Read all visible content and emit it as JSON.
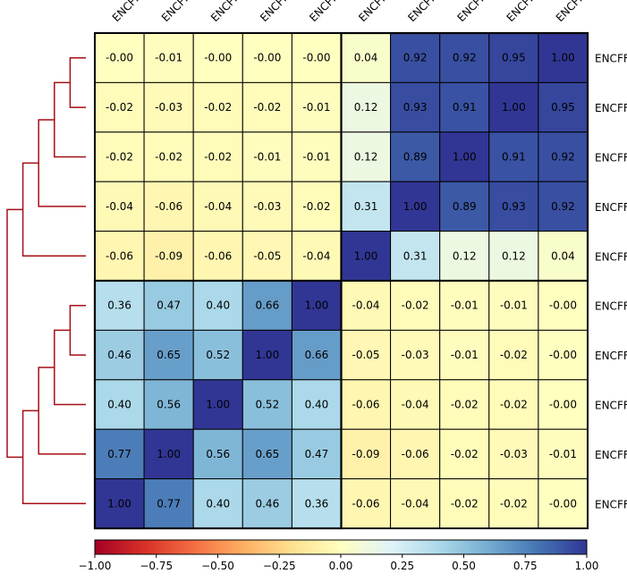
{
  "chart_data": {
    "type": "heatmap",
    "title": "",
    "row_labels": [
      "ENCFF",
      "ENCFF",
      "ENCFF",
      "ENCFF",
      "ENCFF",
      "ENCFF",
      "ENCFF",
      "ENCFF",
      "ENCFF",
      "ENCFF"
    ],
    "col_labels": [
      "ENCFF",
      "ENCFF",
      "ENCFF",
      "ENCFF",
      "ENCFF",
      "ENCFF",
      "ENCFF",
      "ENCFF",
      "ENCFF",
      "ENCFF"
    ],
    "matrix": [
      [
        -0.0,
        -0.01,
        -0.0,
        -0.0,
        -0.0,
        0.04,
        0.92,
        0.92,
        0.95,
        1.0
      ],
      [
        -0.02,
        -0.03,
        -0.02,
        -0.02,
        -0.01,
        0.12,
        0.93,
        0.91,
        1.0,
        0.95
      ],
      [
        -0.02,
        -0.02,
        -0.02,
        -0.01,
        -0.01,
        0.12,
        0.89,
        1.0,
        0.91,
        0.92
      ],
      [
        -0.04,
        -0.06,
        -0.04,
        -0.03,
        -0.02,
        0.31,
        1.0,
        0.89,
        0.93,
        0.92
      ],
      [
        -0.06,
        -0.09,
        -0.06,
        -0.05,
        -0.04,
        1.0,
        0.31,
        0.12,
        0.12,
        0.04
      ],
      [
        0.36,
        0.47,
        0.4,
        0.66,
        1.0,
        -0.04,
        -0.02,
        -0.01,
        -0.01,
        -0.0
      ],
      [
        0.46,
        0.65,
        0.52,
        1.0,
        0.66,
        -0.05,
        -0.03,
        -0.01,
        -0.02,
        -0.0
      ],
      [
        0.4,
        0.56,
        1.0,
        0.52,
        0.4,
        -0.06,
        -0.04,
        -0.02,
        -0.02,
        -0.0
      ],
      [
        0.77,
        1.0,
        0.56,
        0.65,
        0.47,
        -0.09,
        -0.06,
        -0.02,
        -0.03,
        -0.01
      ],
      [
        1.0,
        0.77,
        0.4,
        0.46,
        0.36,
        -0.06,
        -0.04,
        -0.02,
        -0.02,
        -0.0
      ]
    ],
    "matrix_labels": [
      [
        "-0.00",
        "-0.01",
        "-0.00",
        "-0.00",
        "-0.00",
        "0.04",
        "0.92",
        "0.92",
        "0.95",
        "1.00"
      ],
      [
        "-0.02",
        "-0.03",
        "-0.02",
        "-0.02",
        "-0.01",
        "0.12",
        "0.93",
        "0.91",
        "1.00",
        "0.95"
      ],
      [
        "-0.02",
        "-0.02",
        "-0.02",
        "-0.01",
        "-0.01",
        "0.12",
        "0.89",
        "1.00",
        "0.91",
        "0.92"
      ],
      [
        "-0.04",
        "-0.06",
        "-0.04",
        "-0.03",
        "-0.02",
        "0.31",
        "1.00",
        "0.89",
        "0.93",
        "0.92"
      ],
      [
        "-0.06",
        "-0.09",
        "-0.06",
        "-0.05",
        "-0.04",
        "1.00",
        "0.31",
        "0.12",
        "0.12",
        "0.04"
      ],
      [
        "0.36",
        "0.47",
        "0.40",
        "0.66",
        "1.00",
        "-0.04",
        "-0.02",
        "-0.01",
        "-0.01",
        "-0.00"
      ],
      [
        "0.46",
        "0.65",
        "0.52",
        "1.00",
        "0.66",
        "-0.05",
        "-0.03",
        "-0.01",
        "-0.02",
        "-0.00"
      ],
      [
        "0.40",
        "0.56",
        "1.00",
        "0.52",
        "0.40",
        "-0.06",
        "-0.04",
        "-0.02",
        "-0.02",
        "-0.00"
      ],
      [
        "0.77",
        "1.00",
        "0.56",
        "0.65",
        "0.47",
        "-0.09",
        "-0.06",
        "-0.02",
        "-0.03",
        "-0.01"
      ],
      [
        "1.00",
        "0.77",
        "0.40",
        "0.46",
        "0.36",
        "-0.06",
        "-0.04",
        "-0.02",
        "-0.02",
        "-0.00"
      ]
    ],
    "clusters": [
      [
        0,
        1,
        2,
        3,
        4
      ],
      [
        5,
        6,
        7,
        8,
        9
      ]
    ],
    "dendrogram_tree": [
      [
        [
          [
            [
              0,
              1
            ],
            2
          ],
          3
        ],
        4
      ],
      [
        [
          [
            [
              5,
              6
            ],
            7
          ],
          8
        ],
        9
      ]
    ],
    "colorbar": {
      "range": [
        -1.0,
        1.0
      ],
      "ticks": [
        "−1.00",
        "−0.75",
        "−0.50",
        "−0.25",
        "0.00",
        "0.25",
        "0.50",
        "0.75",
        "1.00"
      ],
      "colormap": "RdYlBu"
    },
    "colors": {
      "dendrogram": "#a50f15",
      "cell_border": "#000000",
      "cluster_border": "#000000"
    }
  }
}
